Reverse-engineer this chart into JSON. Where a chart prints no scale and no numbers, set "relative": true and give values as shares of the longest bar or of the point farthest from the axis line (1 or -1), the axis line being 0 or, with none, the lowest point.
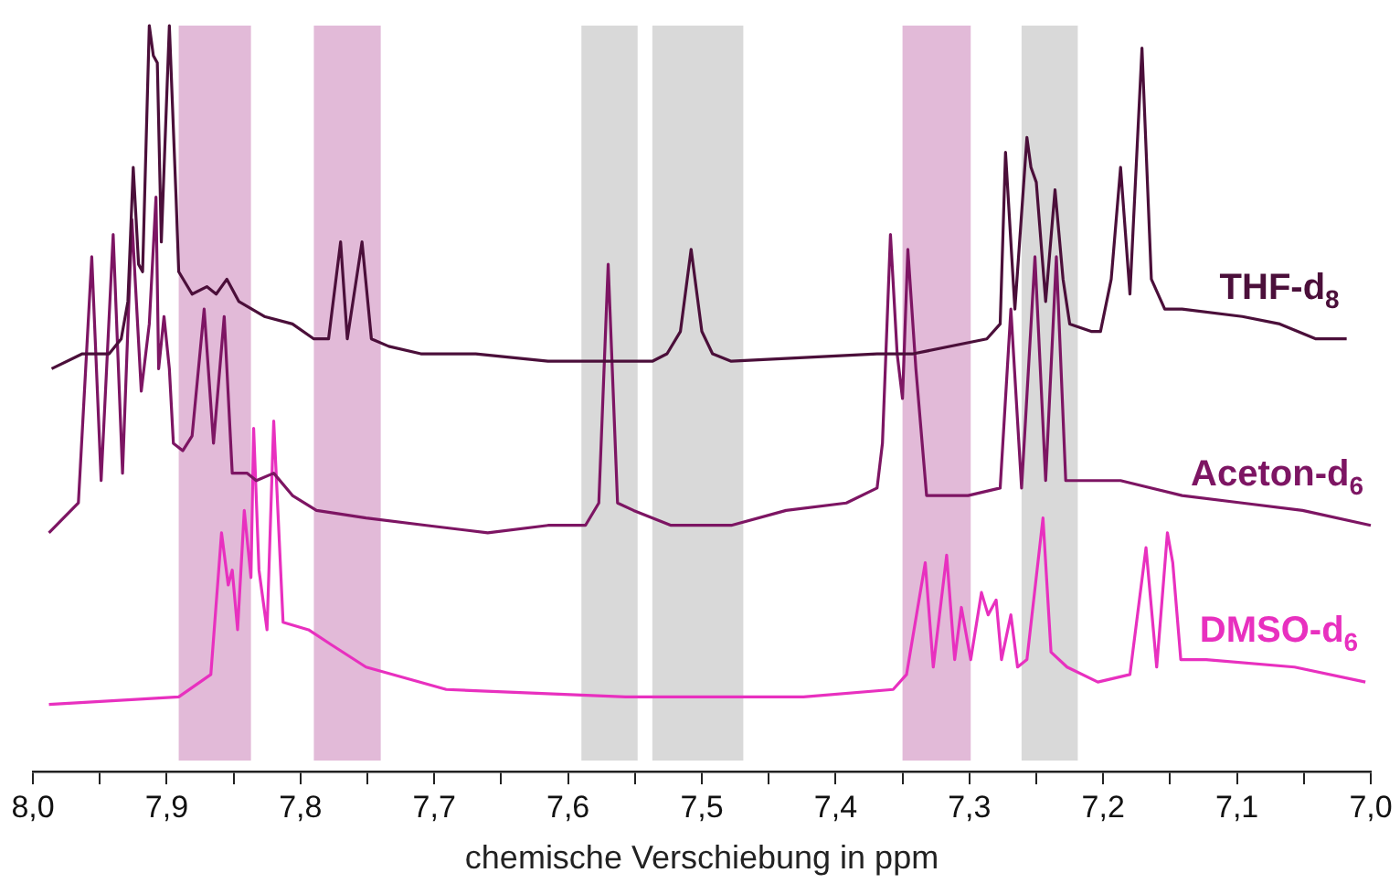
{
  "chart_data": {
    "type": "line",
    "relative": true,
    "xlabel": "chemische Verschiebung in ppm",
    "legend": false,
    "grid": false,
    "marker": "none",
    "line_style": "solid",
    "xlim": [
      8.0,
      7.0
    ],
    "xticks": [
      {
        "value": 8.0,
        "label": "8,0"
      },
      {
        "value": 7.95,
        "label": null
      },
      {
        "value": 7.9,
        "label": "7,9"
      },
      {
        "value": 7.85,
        "label": null
      },
      {
        "value": 7.8,
        "label": "7,8"
      },
      {
        "value": 7.75,
        "label": null
      },
      {
        "value": 7.7,
        "label": "7,7"
      },
      {
        "value": 7.65,
        "label": null
      },
      {
        "value": 7.6,
        "label": "7,6"
      },
      {
        "value": 7.55,
        "label": null
      },
      {
        "value": 7.5,
        "label": "7,5"
      },
      {
        "value": 7.45,
        "label": null
      },
      {
        "value": 7.4,
        "label": "7,4"
      },
      {
        "value": 7.35,
        "label": null
      },
      {
        "value": 7.3,
        "label": "7,3"
      },
      {
        "value": 7.25,
        "label": null
      },
      {
        "value": 7.2,
        "label": "7,2"
      },
      {
        "value": 7.15,
        "label": null
      },
      {
        "value": 7.1,
        "label": "7,1"
      },
      {
        "value": 7.05,
        "label": null
      },
      {
        "value": 7.0,
        "label": "7,0"
      }
    ],
    "bands": [
      {
        "axis": "x",
        "from": 7.891,
        "to": 7.837,
        "color": "#e2bad8"
      },
      {
        "axis": "x",
        "from": 7.79,
        "to": 7.74,
        "color": "#e2bad8"
      },
      {
        "axis": "x",
        "from": 7.59,
        "to": 7.548,
        "color": "#d9d9d9"
      },
      {
        "axis": "x",
        "from": 7.537,
        "to": 7.469,
        "color": "#d9d9d9"
      },
      {
        "axis": "x",
        "from": 7.35,
        "to": 7.299,
        "color": "#e2bad8"
      },
      {
        "axis": "x",
        "from": 7.261,
        "to": 7.219,
        "color": "#d9d9d9"
      }
    ],
    "series": [
      {
        "name": "THF-d$_{8}$",
        "color": "#4b0f3a",
        "x": [
          7.986,
          7.963,
          7.943,
          7.934,
          7.929,
          7.925,
          7.921,
          7.918,
          7.913,
          7.91,
          7.907,
          7.904,
          7.898,
          7.893,
          7.891,
          7.881,
          7.87,
          7.863,
          7.855,
          7.846,
          7.827,
          7.806,
          7.79,
          7.779,
          7.77,
          7.765,
          7.754,
          7.747,
          7.734,
          7.71,
          7.669,
          7.615,
          7.574,
          7.537,
          7.526,
          7.516,
          7.508,
          7.5,
          7.492,
          7.478,
          7.369,
          7.342,
          7.287,
          7.277,
          7.273,
          7.266,
          7.257,
          7.254,
          7.25,
          7.243,
          7.236,
          7.23,
          7.225,
          7.209,
          7.202,
          7.194,
          7.187,
          7.18,
          7.171,
          7.164,
          7.154,
          7.141,
          7.096,
          7.068,
          7.041,
          7.018
        ],
        "values": [
          0.54,
          0.56,
          0.56,
          0.58,
          0.63,
          0.81,
          0.68,
          0.67,
          1.0,
          0.96,
          0.95,
          0.71,
          1.0,
          0.77,
          0.67,
          0.64,
          0.65,
          0.64,
          0.66,
          0.63,
          0.61,
          0.6,
          0.58,
          0.58,
          0.71,
          0.58,
          0.71,
          0.58,
          0.57,
          0.56,
          0.56,
          0.55,
          0.55,
          0.55,
          0.56,
          0.59,
          0.7,
          0.59,
          0.56,
          0.55,
          0.56,
          0.56,
          0.58,
          0.6,
          0.83,
          0.62,
          0.85,
          0.81,
          0.79,
          0.63,
          0.78,
          0.66,
          0.6,
          0.59,
          0.59,
          0.66,
          0.81,
          0.64,
          0.97,
          0.66,
          0.62,
          0.62,
          0.61,
          0.6,
          0.58,
          0.58
        ]
      },
      {
        "name": "Aceton-d$_{6}$",
        "color": "#7d1563",
        "x": [
          7.988,
          7.966,
          7.956,
          7.949,
          7.94,
          7.933,
          7.926,
          7.919,
          7.913,
          7.908,
          7.906,
          7.902,
          7.898,
          7.895,
          7.888,
          7.881,
          7.872,
          7.865,
          7.857,
          7.851,
          7.84,
          7.833,
          7.82,
          7.806,
          7.788,
          7.751,
          7.706,
          7.66,
          7.615,
          7.587,
          7.577,
          7.57,
          7.563,
          7.551,
          7.523,
          7.478,
          7.437,
          7.392,
          7.369,
          7.365,
          7.359,
          7.354,
          7.35,
          7.346,
          7.34,
          7.332,
          7.301,
          7.277,
          7.269,
          7.261,
          7.251,
          7.243,
          7.235,
          7.228,
          7.209,
          7.187,
          7.141,
          7.096,
          7.051,
          7.0
        ],
        "values": [
          0.32,
          0.36,
          0.69,
          0.39,
          0.72,
          0.4,
          0.74,
          0.51,
          0.6,
          0.77,
          0.54,
          0.61,
          0.54,
          0.44,
          0.43,
          0.45,
          0.62,
          0.44,
          0.61,
          0.4,
          0.4,
          0.39,
          0.4,
          0.37,
          0.35,
          0.34,
          0.33,
          0.32,
          0.33,
          0.33,
          0.36,
          0.68,
          0.36,
          0.35,
          0.33,
          0.33,
          0.35,
          0.36,
          0.38,
          0.44,
          0.72,
          0.56,
          0.5,
          0.7,
          0.54,
          0.37,
          0.37,
          0.38,
          0.62,
          0.38,
          0.69,
          0.39,
          0.69,
          0.39,
          0.39,
          0.39,
          0.37,
          0.36,
          0.35,
          0.33
        ]
      },
      {
        "name": "DMSO-d$_{6}$",
        "color": "#e830bf",
        "x": [
          7.988,
          7.891,
          7.867,
          7.859,
          7.854,
          7.851,
          7.847,
          7.842,
          7.837,
          7.835,
          7.831,
          7.825,
          7.82,
          7.813,
          7.794,
          7.777,
          7.751,
          7.691,
          7.557,
          7.424,
          7.357,
          7.347,
          7.333,
          7.327,
          7.317,
          7.311,
          7.306,
          7.299,
          7.291,
          7.286,
          7.28,
          7.276,
          7.269,
          7.264,
          7.257,
          7.245,
          7.239,
          7.227,
          7.204,
          7.18,
          7.168,
          7.16,
          7.152,
          7.148,
          7.142,
          7.123,
          7.057,
          7.004
        ],
        "values": [
          0.09,
          0.1,
          0.13,
          0.32,
          0.25,
          0.27,
          0.19,
          0.35,
          0.26,
          0.46,
          0.27,
          0.19,
          0.47,
          0.2,
          0.19,
          0.17,
          0.14,
          0.11,
          0.1,
          0.1,
          0.11,
          0.13,
          0.28,
          0.14,
          0.29,
          0.15,
          0.22,
          0.15,
          0.24,
          0.21,
          0.23,
          0.15,
          0.21,
          0.14,
          0.15,
          0.34,
          0.16,
          0.14,
          0.12,
          0.13,
          0.3,
          0.14,
          0.32,
          0.28,
          0.15,
          0.15,
          0.14,
          0.12
        ]
      }
    ]
  }
}
